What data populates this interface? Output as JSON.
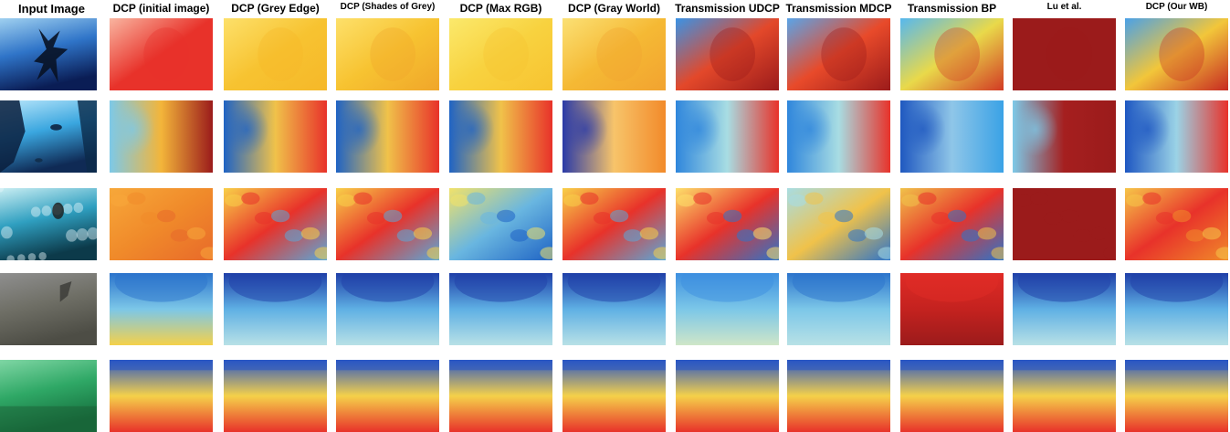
{
  "figure": {
    "columns": [
      {
        "label": "Input Image",
        "kind": "photo"
      },
      {
        "label": "DCP (initial image)",
        "kind": "map"
      },
      {
        "label": "DCP (Grey Edge)",
        "kind": "map"
      },
      {
        "label": "DCP (Shades of Grey)",
        "kind": "map"
      },
      {
        "label": "DCP (Max RGB)",
        "kind": "map"
      },
      {
        "label": "DCP (Gray World)",
        "kind": "map"
      },
      {
        "label": "Transmission UDCP",
        "kind": "map"
      },
      {
        "label": "Transmission MDCP",
        "kind": "map"
      },
      {
        "label": "Transmission BP",
        "kind": "map"
      },
      {
        "label": "Lu et al.",
        "kind": "map"
      },
      {
        "label": "DCP (Our WB)",
        "kind": "map"
      }
    ],
    "rows": [
      {
        "scene": "dark tree silhouette under water",
        "photo_colors": [
          "#9fd0f0",
          "#2f74c8",
          "#0a1d55"
        ],
        "maps": [
          [
            "#f9b5a0",
            "#e8322a",
            "#e8322a"
          ],
          [
            "#fde06a",
            "#f7c331",
            "#f6b829"
          ],
          [
            "#fde06a",
            "#f7c331",
            "#f0a62a"
          ],
          [
            "#fbe96c",
            "#f8d23f",
            "#f7c331"
          ],
          [
            "#fbe074",
            "#f5b934",
            "#f2a330"
          ],
          [
            "#3a93e6",
            "#e3482a",
            "#9b1b1b"
          ],
          [
            "#5aa4e8",
            "#e84a2a",
            "#9b1b1b"
          ],
          [
            "#56b8ef",
            "#e9d94a",
            "#d23a24"
          ],
          [
            "#9b1b1b",
            "#9b1b1b",
            "#9b1b1b"
          ],
          [
            "#4aa1e8",
            "#f2c63a",
            "#c72a22"
          ]
        ]
      },
      {
        "scene": "divers in blue water",
        "photo_colors": [
          "#b8e6fb",
          "#3aa6df",
          "#0f2a55"
        ],
        "maps": [
          [
            "#7dc9e8",
            "#f3b53a",
            "#9b1b1b"
          ],
          [
            "#1f63c4",
            "#f0c24a",
            "#e8322a"
          ],
          [
            "#1f63c4",
            "#f0c24a",
            "#e8322a"
          ],
          [
            "#1f63c4",
            "#f0c24a",
            "#e8322a"
          ],
          [
            "#2a3aa8",
            "#f7c46a",
            "#f28a2a"
          ],
          [
            "#2f86dc",
            "#a8dde3",
            "#e8322a"
          ],
          [
            "#2f86dc",
            "#a8dde3",
            "#e8322a"
          ],
          [
            "#1f58c0",
            "#8fc6e8",
            "#3aa2e6"
          ],
          [
            "#7dc9e8",
            "#a51f1f",
            "#9b1b1b"
          ],
          [
            "#1e57c2",
            "#9bd3e6",
            "#e8322a"
          ]
        ]
      },
      {
        "scene": "fish over coral reef",
        "photo_colors": [
          "#c8edf2",
          "#2f9fc0",
          "#0c3a4a"
        ],
        "maps": [
          [
            "#f7a83a",
            "#f08a2a",
            "#e86a2a"
          ],
          [
            "#f8d048",
            "#e8322a",
            "#5aa8d8"
          ],
          [
            "#f8d048",
            "#e8322a",
            "#5aa8d8"
          ],
          [
            "#f1e26a",
            "#69b6e0",
            "#1f63c4"
          ],
          [
            "#f8d048",
            "#e8322a",
            "#5aa8d8"
          ],
          [
            "#fde06a",
            "#e8322a",
            "#2f74c8"
          ],
          [
            "#a8dde3",
            "#f0c24a",
            "#2f74c8"
          ],
          [
            "#f0c24a",
            "#e8322a",
            "#2f74c8"
          ],
          [
            "#9b1b1b",
            "#9b1b1b",
            "#9b1b1b"
          ],
          [
            "#f6c649",
            "#e8322a",
            "#f08a2a"
          ]
        ]
      },
      {
        "scene": "murky grey seabed",
        "photo_colors": [
          "#8f8f8f",
          "#6f6f66",
          "#4d4d45"
        ],
        "maps": [
          [
            "#2c74cc",
            "#7cc7e8",
            "#f5d14a"
          ],
          [
            "#1f3fa8",
            "#5fb0e4",
            "#b8e1e6"
          ],
          [
            "#1f3fa8",
            "#5fb0e4",
            "#b8e1e6"
          ],
          [
            "#1f3fa8",
            "#5fb0e4",
            "#b8e1e6"
          ],
          [
            "#1f3fa8",
            "#5fb0e4",
            "#b8e1e6"
          ],
          [
            "#3d8fe0",
            "#7cc7e8",
            "#cfe6c8"
          ],
          [
            "#2c74cc",
            "#7cc7e8",
            "#b8e1e6"
          ],
          [
            "#e02b26",
            "#c4221f",
            "#9b1b1b"
          ],
          [
            "#1f3fa8",
            "#5fb0e4",
            "#b8e1e6"
          ],
          [
            "#1f3fa8",
            "#5fb0e4",
            "#b8e1e6"
          ]
        ]
      },
      {
        "scene": "green turbid seabed",
        "photo_colors": [
          "#7fd6a4",
          "#2fa866",
          "#16703e"
        ],
        "maps": [
          [
            "#2a56c4",
            "#f5d14a",
            "#e8322a"
          ],
          [
            "#2a56c4",
            "#f5d14a",
            "#e8322a"
          ],
          [
            "#2a56c4",
            "#f5d14a",
            "#e8322a"
          ],
          [
            "#2a56c4",
            "#f5d14a",
            "#e8322a"
          ],
          [
            "#2a56c4",
            "#f5d14a",
            "#e8322a"
          ],
          [
            "#2a56c4",
            "#f5d14a",
            "#e8322a"
          ],
          [
            "#2a56c4",
            "#f5d14a",
            "#e8322a"
          ],
          [
            "#2a56c4",
            "#f5d14a",
            "#e8322a"
          ],
          [
            "#2a56c4",
            "#f5d14a",
            "#e8322a"
          ],
          [
            "#2a56c4",
            "#f5d14a",
            "#e8322a"
          ]
        ]
      }
    ]
  }
}
